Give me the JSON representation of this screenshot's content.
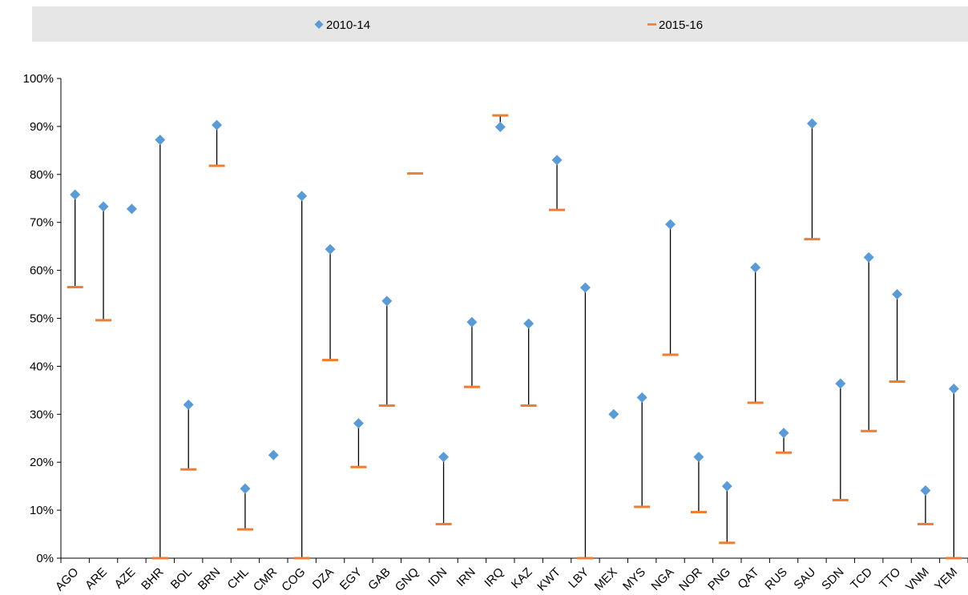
{
  "chart_data": {
    "type": "scatter",
    "title": "",
    "xlabel": "",
    "ylabel": "",
    "ylim": [
      0,
      100
    ],
    "y_ticks": [
      "0%",
      "10%",
      "20%",
      "30%",
      "40%",
      "50%",
      "60%",
      "70%",
      "80%",
      "90%",
      "100%"
    ],
    "grid": false,
    "legend_position": "top",
    "categories": [
      "AGO",
      "ARE",
      "AZE",
      "BHR",
      "BOL",
      "BRN",
      "CHL",
      "CMR",
      "COG",
      "DZA",
      "EGY",
      "GAB",
      "GNQ",
      "IDN",
      "IRN",
      "IRQ",
      "KAZ",
      "KWT",
      "LBY",
      "MEX",
      "MYS",
      "NGA",
      "NOR",
      "PNG",
      "QAT",
      "RUS",
      "SAU",
      "SDN",
      "TCD",
      "TTO",
      "VNM",
      "YEM"
    ],
    "series": [
      {
        "name": "2010-14",
        "marker": "diamond",
        "color": "#5B9BD5",
        "values": [
          75.8,
          73.3,
          72.8,
          87.2,
          32.0,
          90.3,
          14.5,
          21.5,
          75.5,
          64.4,
          28.1,
          53.6,
          null,
          21.1,
          49.2,
          89.9,
          48.9,
          83.0,
          56.4,
          30.0,
          33.5,
          69.6,
          21.1,
          15.0,
          60.6,
          26.1,
          90.6,
          36.4,
          62.7,
          55.0,
          14.1,
          35.3
        ]
      },
      {
        "name": "2015-16",
        "marker": "dash",
        "color": "#ED7D31",
        "values": [
          56.5,
          49.6,
          null,
          0,
          18.5,
          81.8,
          6.0,
          null,
          0,
          41.3,
          19.0,
          31.8,
          80.2,
          7.1,
          35.7,
          92.3,
          31.8,
          72.6,
          0,
          null,
          10.7,
          42.4,
          9.6,
          3.2,
          32.4,
          22.0,
          66.5,
          12.1,
          26.5,
          36.8,
          7.1,
          0
        ]
      }
    ],
    "range_line_color": "#000000"
  }
}
